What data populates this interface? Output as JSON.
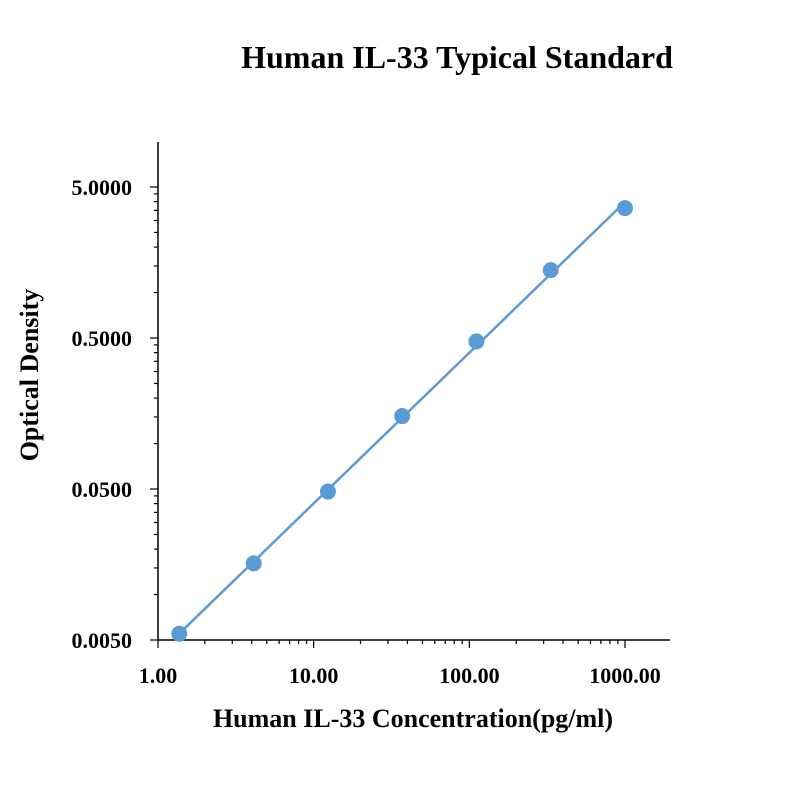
{
  "chart_data": {
    "type": "scatter",
    "title": "Human IL-33 Typical Standard",
    "xlabel": "Human IL-33 Concentration(pg/ml)",
    "ylabel": "Optical Density",
    "x_scale": "log",
    "y_scale": "log",
    "xlim": [
      1,
      1000
    ],
    "ylim": [
      0.005,
      10
    ],
    "x_ticks": [
      {
        "value": 1,
        "label": "1.00"
      },
      {
        "value": 10,
        "label": "10.00"
      },
      {
        "value": 100,
        "label": "100.00"
      },
      {
        "value": 1000,
        "label": "1000.00"
      }
    ],
    "y_ticks": [
      {
        "value": 0.005,
        "label": "0.0050"
      },
      {
        "value": 0.05,
        "label": "0.0500"
      },
      {
        "value": 0.5,
        "label": "0.5000"
      },
      {
        "value": 5,
        "label": "5.0000"
      }
    ],
    "series": [
      {
        "color": "#5B9BD5",
        "x": [
          1.37,
          4.12,
          12.35,
          37.04,
          111.11,
          333.33,
          1000
        ],
        "y": [
          0.0055,
          0.0161,
          0.0481,
          0.1521,
          0.4751,
          1.4071,
          3.6251
        ],
        "trendline": true
      }
    ],
    "grid": false,
    "legend": "none"
  }
}
